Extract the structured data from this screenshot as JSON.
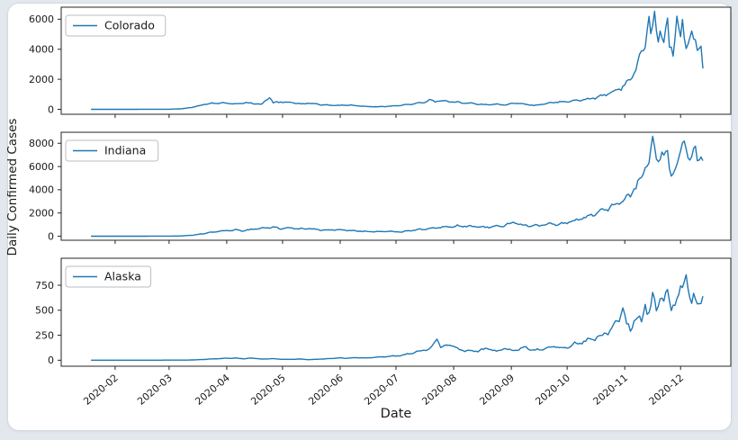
{
  "figure": {
    "outer_background": "#e3e8ee",
    "card_background": "#ffffff",
    "spine_color": "#262626",
    "text_color": "#1a1a1a"
  },
  "chart_data": {
    "type": "line",
    "title": "",
    "xlabel": "Date",
    "ylabel": "Daily Confirmed Cases",
    "line_color": "#1f77b4",
    "grid": false,
    "legend_position": "upper-left",
    "x_axis": {
      "range_days": [
        "2020-01-03",
        "2020-12-28"
      ],
      "data_range": [
        "2020-01-19",
        "2020-12-13"
      ],
      "tick_labels": [
        "2020-02",
        "2020-03",
        "2020-04",
        "2020-05",
        "2020-06",
        "2020-07",
        "2020-08",
        "2020-09",
        "2020-10",
        "2020-11",
        "2020-12"
      ],
      "tick_rotation_deg": 40
    },
    "subplots": [
      {
        "name": "Colorado",
        "legend": "Colorado",
        "ylim": [
          -330,
          6800
        ],
        "yticks": [
          0,
          2000,
          4000,
          6000
        ],
        "keypoints": [
          [
            "01-19",
            0
          ],
          [
            "02-10",
            2
          ],
          [
            "03-01",
            5
          ],
          [
            "03-08",
            40
          ],
          [
            "03-14",
            140
          ],
          [
            "03-20",
            330
          ],
          [
            "03-26",
            430
          ],
          [
            "04-01",
            400
          ],
          [
            "04-06",
            340
          ],
          [
            "04-11",
            450
          ],
          [
            "04-16",
            380
          ],
          [
            "04-20",
            340
          ],
          [
            "04-24",
            880
          ],
          [
            "04-26",
            440
          ],
          [
            "05-01",
            500
          ],
          [
            "05-06",
            450
          ],
          [
            "05-11",
            350
          ],
          [
            "05-16",
            420
          ],
          [
            "05-21",
            310
          ],
          [
            "05-26",
            270
          ],
          [
            "06-01",
            260
          ],
          [
            "06-06",
            290
          ],
          [
            "06-11",
            220
          ],
          [
            "06-16",
            180
          ],
          [
            "06-21",
            170
          ],
          [
            "06-26",
            190
          ],
          [
            "07-01",
            230
          ],
          [
            "07-06",
            290
          ],
          [
            "07-11",
            380
          ],
          [
            "07-16",
            480
          ],
          [
            "07-19",
            620
          ],
          [
            "07-22",
            490
          ],
          [
            "07-25",
            600
          ],
          [
            "07-30",
            520
          ],
          [
            "08-04",
            460
          ],
          [
            "08-09",
            410
          ],
          [
            "08-14",
            340
          ],
          [
            "08-19",
            300
          ],
          [
            "08-24",
            330
          ],
          [
            "08-29",
            280
          ],
          [
            "09-03",
            420
          ],
          [
            "09-08",
            350
          ],
          [
            "09-13",
            260
          ],
          [
            "09-18",
            340
          ],
          [
            "09-23",
            460
          ],
          [
            "09-28",
            490
          ],
          [
            "10-03",
            540
          ],
          [
            "10-08",
            610
          ],
          [
            "10-13",
            690
          ],
          [
            "10-18",
            830
          ],
          [
            "10-23",
            1060
          ],
          [
            "10-28",
            1260
          ],
          [
            "11-01",
            1620
          ],
          [
            "11-04",
            2100
          ],
          [
            "11-07",
            2750
          ],
          [
            "11-10",
            3600
          ],
          [
            "11-12",
            4400
          ],
          [
            "11-14",
            6450
          ],
          [
            "11-15",
            5100
          ],
          [
            "11-17",
            5950
          ],
          [
            "11-18",
            5200
          ],
          [
            "11-19",
            4650
          ],
          [
            "11-20",
            5600
          ],
          [
            "11-22",
            4100
          ],
          [
            "11-24",
            6050
          ],
          [
            "11-25",
            4300
          ],
          [
            "11-27",
            3900
          ],
          [
            "11-29",
            5850
          ],
          [
            "12-01",
            4700
          ],
          [
            "12-02",
            5650
          ],
          [
            "12-03",
            4900
          ],
          [
            "12-04",
            4350
          ],
          [
            "12-05",
            4650
          ],
          [
            "12-06",
            4400
          ],
          [
            "12-07",
            4650
          ],
          [
            "12-08",
            4350
          ],
          [
            "12-09",
            4550
          ],
          [
            "12-10",
            4150
          ],
          [
            "12-11",
            4450
          ],
          [
            "12-12",
            4250
          ],
          [
            "12-13",
            2700
          ]
        ]
      },
      {
        "name": "Indiana",
        "legend": "Indiana",
        "ylim": [
          -350,
          8950
        ],
        "yticks": [
          0,
          2000,
          4000,
          6000,
          8000
        ],
        "keypoints": [
          [
            "01-19",
            0
          ],
          [
            "02-15",
            2
          ],
          [
            "03-01",
            5
          ],
          [
            "03-08",
            25
          ],
          [
            "03-14",
            90
          ],
          [
            "03-20",
            240
          ],
          [
            "03-26",
            390
          ],
          [
            "04-01",
            470
          ],
          [
            "04-06",
            530
          ],
          [
            "04-10",
            460
          ],
          [
            "04-14",
            570
          ],
          [
            "04-18",
            650
          ],
          [
            "04-22",
            710
          ],
          [
            "04-26",
            800
          ],
          [
            "04-30",
            660
          ],
          [
            "05-05",
            710
          ],
          [
            "05-10",
            620
          ],
          [
            "05-15",
            670
          ],
          [
            "05-20",
            570
          ],
          [
            "05-25",
            510
          ],
          [
            "05-30",
            560
          ],
          [
            "06-04",
            500
          ],
          [
            "06-09",
            460
          ],
          [
            "06-14",
            410
          ],
          [
            "06-19",
            370
          ],
          [
            "06-24",
            420
          ],
          [
            "06-29",
            390
          ],
          [
            "07-04",
            360
          ],
          [
            "07-09",
            490
          ],
          [
            "07-14",
            590
          ],
          [
            "07-19",
            650
          ],
          [
            "07-24",
            740
          ],
          [
            "07-29",
            800
          ],
          [
            "08-03",
            890
          ],
          [
            "08-08",
            850
          ],
          [
            "08-13",
            800
          ],
          [
            "08-18",
            760
          ],
          [
            "08-23",
            850
          ],
          [
            "08-28",
            910
          ],
          [
            "09-02",
            1160
          ],
          [
            "09-07",
            960
          ],
          [
            "09-12",
            890
          ],
          [
            "09-17",
            930
          ],
          [
            "09-22",
            1060
          ],
          [
            "09-27",
            1010
          ],
          [
            "10-02",
            1210
          ],
          [
            "10-07",
            1410
          ],
          [
            "10-12",
            1660
          ],
          [
            "10-17",
            1960
          ],
          [
            "10-22",
            2310
          ],
          [
            "10-27",
            2660
          ],
          [
            "10-31",
            3120
          ],
          [
            "11-04",
            3620
          ],
          [
            "11-07",
            4320
          ],
          [
            "11-10",
            5120
          ],
          [
            "11-12",
            6120
          ],
          [
            "11-14",
            6820
          ],
          [
            "11-16",
            8320
          ],
          [
            "11-18",
            6620
          ],
          [
            "11-20",
            7520
          ],
          [
            "11-22",
            7020
          ],
          [
            "11-24",
            7320
          ],
          [
            "11-26",
            5120
          ],
          [
            "11-28",
            5620
          ],
          [
            "11-30",
            6220
          ],
          [
            "12-03",
            8520
          ],
          [
            "12-05",
            7120
          ],
          [
            "12-06",
            6720
          ],
          [
            "12-07",
            6420
          ],
          [
            "12-08",
            7020
          ],
          [
            "12-09",
            7820
          ],
          [
            "12-10",
            7220
          ],
          [
            "12-11",
            6720
          ],
          [
            "12-12",
            7020
          ],
          [
            "12-13",
            6320
          ]
        ]
      },
      {
        "name": "Alaska",
        "legend": "Alaska",
        "ylim": [
          -60,
          1020
        ],
        "yticks": [
          0,
          250,
          500,
          750
        ],
        "keypoints": [
          [
            "01-19",
            0
          ],
          [
            "03-10",
            1
          ],
          [
            "03-15",
            4
          ],
          [
            "03-20",
            8
          ],
          [
            "03-25",
            14
          ],
          [
            "03-31",
            18
          ],
          [
            "04-05",
            22
          ],
          [
            "04-10",
            15
          ],
          [
            "04-15",
            20
          ],
          [
            "04-20",
            12
          ],
          [
            "04-25",
            16
          ],
          [
            "04-30",
            10
          ],
          [
            "05-05",
            8
          ],
          [
            "05-10",
            12
          ],
          [
            "05-15",
            6
          ],
          [
            "05-20",
            10
          ],
          [
            "05-25",
            15
          ],
          [
            "05-31",
            22
          ],
          [
            "06-05",
            20
          ],
          [
            "06-10",
            26
          ],
          [
            "06-15",
            22
          ],
          [
            "06-20",
            30
          ],
          [
            "06-25",
            35
          ],
          [
            "06-30",
            42
          ],
          [
            "07-04",
            48
          ],
          [
            "07-08",
            65
          ],
          [
            "07-12",
            85
          ],
          [
            "07-16",
            100
          ],
          [
            "07-20",
            125
          ],
          [
            "07-23",
            225
          ],
          [
            "07-25",
            130
          ],
          [
            "07-28",
            145
          ],
          [
            "07-31",
            155
          ],
          [
            "08-04",
            105
          ],
          [
            "08-08",
            95
          ],
          [
            "08-12",
            85
          ],
          [
            "08-16",
            105
          ],
          [
            "08-20",
            115
          ],
          [
            "08-24",
            90
          ],
          [
            "08-28",
            120
          ],
          [
            "09-01",
            95
          ],
          [
            "09-05",
            105
          ],
          [
            "09-09",
            130
          ],
          [
            "09-13",
            95
          ],
          [
            "09-17",
            115
          ],
          [
            "09-21",
            125
          ],
          [
            "09-25",
            140
          ],
          [
            "09-29",
            115
          ],
          [
            "10-03",
            150
          ],
          [
            "10-07",
            175
          ],
          [
            "10-11",
            195
          ],
          [
            "10-15",
            210
          ],
          [
            "10-19",
            235
          ],
          [
            "10-23",
            280
          ],
          [
            "10-26",
            330
          ],
          [
            "10-29",
            420
          ],
          [
            "10-31",
            520
          ],
          [
            "11-02",
            360
          ],
          [
            "11-04",
            310
          ],
          [
            "11-06",
            410
          ],
          [
            "11-08",
            440
          ],
          [
            "11-10",
            360
          ],
          [
            "11-12",
            555
          ],
          [
            "11-14",
            460
          ],
          [
            "11-16",
            605
          ],
          [
            "11-18",
            510
          ],
          [
            "11-20",
            690
          ],
          [
            "11-22",
            560
          ],
          [
            "11-24",
            645
          ],
          [
            "11-26",
            520
          ],
          [
            "11-28",
            590
          ],
          [
            "11-30",
            640
          ],
          [
            "12-02",
            705
          ],
          [
            "12-04",
            930
          ],
          [
            "12-05",
            700
          ],
          [
            "12-06",
            640
          ],
          [
            "12-07",
            560
          ],
          [
            "12-08",
            630
          ],
          [
            "12-09",
            600
          ],
          [
            "12-10",
            580
          ],
          [
            "12-11",
            640
          ],
          [
            "12-12",
            590
          ],
          [
            "12-13",
            625
          ]
        ]
      }
    ]
  }
}
